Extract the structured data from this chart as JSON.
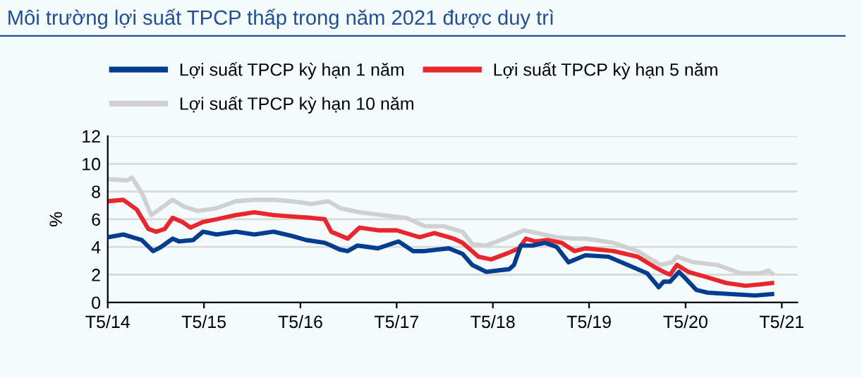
{
  "chart_data": {
    "type": "line",
    "title": "Môi trường lợi suất TPCP thấp trong năm 2021 được duy trì",
    "ylabel": "%",
    "xlim": [
      "2014-05-01",
      "2021-06-29"
    ],
    "xticks": [
      {
        "value": "2014-05",
        "label": "T5/14"
      },
      {
        "value": "2015-05",
        "label": "T5/15"
      },
      {
        "value": "2016-05",
        "label": "T5/16"
      },
      {
        "value": "2017-05",
        "label": "T5/17"
      },
      {
        "value": "2018-05",
        "label": "T5/18"
      },
      {
        "value": "2019-05",
        "label": "T5/19"
      },
      {
        "value": "2020-05",
        "label": "T5/20"
      },
      {
        "value": "2021-05",
        "label": "T5/21"
      }
    ],
    "ylim": [
      0,
      12
    ],
    "yticks": [
      0,
      2,
      4,
      6,
      8,
      10,
      12
    ],
    "grid": "y",
    "legend": "top",
    "marker": "none",
    "line_style": "solid",
    "series": [
      {
        "name": "Lợi suất TPCP kỳ hạn 1 năm",
        "color": "#003c8f",
        "x": [
          "2014-05-01",
          "2014-06-29",
          "2014-09-07",
          "2014-10-20",
          "2014-11-19",
          "2015-01-02",
          "2015-01-27",
          "2015-03-21",
          "2015-04-27",
          "2015-06-18",
          "2015-08-30",
          "2015-11-08",
          "2016-01-20",
          "2016-03-29",
          "2016-05-23",
          "2016-08-01",
          "2016-08-26",
          "2016-09-29",
          "2016-10-27",
          "2016-12-03",
          "2017-02-19",
          "2017-05-08",
          "2017-07-02",
          "2017-08-15",
          "2017-11-15",
          "2018-01-06",
          "2018-02-12",
          "2018-04-06",
          "2018-07-02",
          "2018-07-20",
          "2018-08-15",
          "2018-09-29",
          "2018-11-15",
          "2018-12-29",
          "2019-02-12",
          "2019-04-17",
          "2019-07-13",
          "2019-09-25",
          "2019-12-07",
          "2020-01-20",
          "2020-02-08",
          "2020-03-03",
          "2020-04-06",
          "2020-04-27",
          "2020-06-11",
          "2020-07-24",
          "2020-10-20",
          "2021-01-20",
          "2021-03-25"
        ],
        "values": [
          4.7,
          4.9,
          4.5,
          3.7,
          4.0,
          4.6,
          4.4,
          4.5,
          5.1,
          4.9,
          5.1,
          4.9,
          5.1,
          4.8,
          4.5,
          4.3,
          4.1,
          3.8,
          3.7,
          4.1,
          3.9,
          4.4,
          3.7,
          3.7,
          3.9,
          3.5,
          2.7,
          2.2,
          2.4,
          2.7,
          4.1,
          4.1,
          4.3,
          4.0,
          2.9,
          3.4,
          3.3,
          2.7,
          2.1,
          1.1,
          1.5,
          1.5,
          2.2,
          1.8,
          0.9,
          0.7,
          0.6,
          0.5,
          0.6
        ]
      },
      {
        "name": "Lợi suất TPCP kỳ hạn 5 năm",
        "color": "#e8262b",
        "x": [
          "2014-05-01",
          "2014-06-29",
          "2014-08-19",
          "2014-10-02",
          "2014-11-01",
          "2014-12-03",
          "2015-01-02",
          "2015-02-08",
          "2015-03-11",
          "2015-04-27",
          "2015-06-18",
          "2015-08-30",
          "2015-11-08",
          "2016-01-20",
          "2016-03-29",
          "2016-06-11",
          "2016-08-01",
          "2016-08-26",
          "2016-10-27",
          "2016-12-11",
          "2017-02-19",
          "2017-05-01",
          "2017-07-27",
          "2017-09-21",
          "2017-12-03",
          "2018-01-06",
          "2018-03-07",
          "2018-04-24",
          "2018-07-02",
          "2018-08-08",
          "2018-09-03",
          "2018-10-09",
          "2018-11-23",
          "2019-01-17",
          "2019-03-07",
          "2019-04-17",
          "2019-08-01",
          "2019-11-01",
          "2020-01-09",
          "2020-02-08",
          "2020-03-03",
          "2020-03-29",
          "2020-05-12",
          "2020-07-24",
          "2020-10-02",
          "2020-12-14",
          "2021-02-08",
          "2021-03-25"
        ],
        "values": [
          7.3,
          7.4,
          6.7,
          5.3,
          5.1,
          5.3,
          6.1,
          5.8,
          5.4,
          5.8,
          6.0,
          6.3,
          6.5,
          6.3,
          6.2,
          6.1,
          6.0,
          5.1,
          4.6,
          5.4,
          5.2,
          5.2,
          4.7,
          5.0,
          4.6,
          4.3,
          3.3,
          3.1,
          3.6,
          3.9,
          4.6,
          4.4,
          4.5,
          4.3,
          3.7,
          3.9,
          3.7,
          3.3,
          2.5,
          2.2,
          2.0,
          2.7,
          2.2,
          1.8,
          1.4,
          1.2,
          1.3,
          1.4
        ]
      },
      {
        "name": "Lợi suất TPCP kỳ hạn 10 năm",
        "color": "#d0d0d0",
        "x": [
          "2014-05-01",
          "2014-07-13",
          "2014-08-01",
          "2014-09-07",
          "2014-10-13",
          "2014-11-26",
          "2015-01-02",
          "2015-02-15",
          "2015-04-09",
          "2015-06-18",
          "2015-08-30",
          "2015-11-08",
          "2016-01-20",
          "2016-03-29",
          "2016-06-11",
          "2016-08-15",
          "2016-09-29",
          "2016-12-11",
          "2017-03-07",
          "2017-06-07",
          "2017-08-15",
          "2017-10-27",
          "2018-01-06",
          "2018-02-12",
          "2018-04-06",
          "2018-06-14",
          "2018-08-26",
          "2018-10-17",
          "2018-12-29",
          "2019-03-07",
          "2019-04-17",
          "2019-08-01",
          "2019-11-01",
          "2020-01-27",
          "2020-03-11",
          "2020-03-29",
          "2020-05-30",
          "2020-08-30",
          "2020-11-26",
          "2021-02-08",
          "2021-03-11",
          "2021-03-25"
        ],
        "values": [
          8.9,
          8.8,
          9.0,
          7.9,
          6.3,
          6.9,
          7.4,
          6.9,
          6.6,
          6.8,
          7.3,
          7.4,
          7.4,
          7.3,
          7.1,
          7.3,
          6.8,
          6.5,
          6.3,
          6.1,
          5.5,
          5.5,
          5.1,
          4.2,
          4.1,
          4.6,
          5.2,
          5.0,
          4.7,
          4.6,
          4.6,
          4.3,
          3.7,
          2.7,
          2.9,
          3.3,
          2.9,
          2.7,
          2.1,
          2.1,
          2.3,
          2.1
        ]
      }
    ]
  }
}
